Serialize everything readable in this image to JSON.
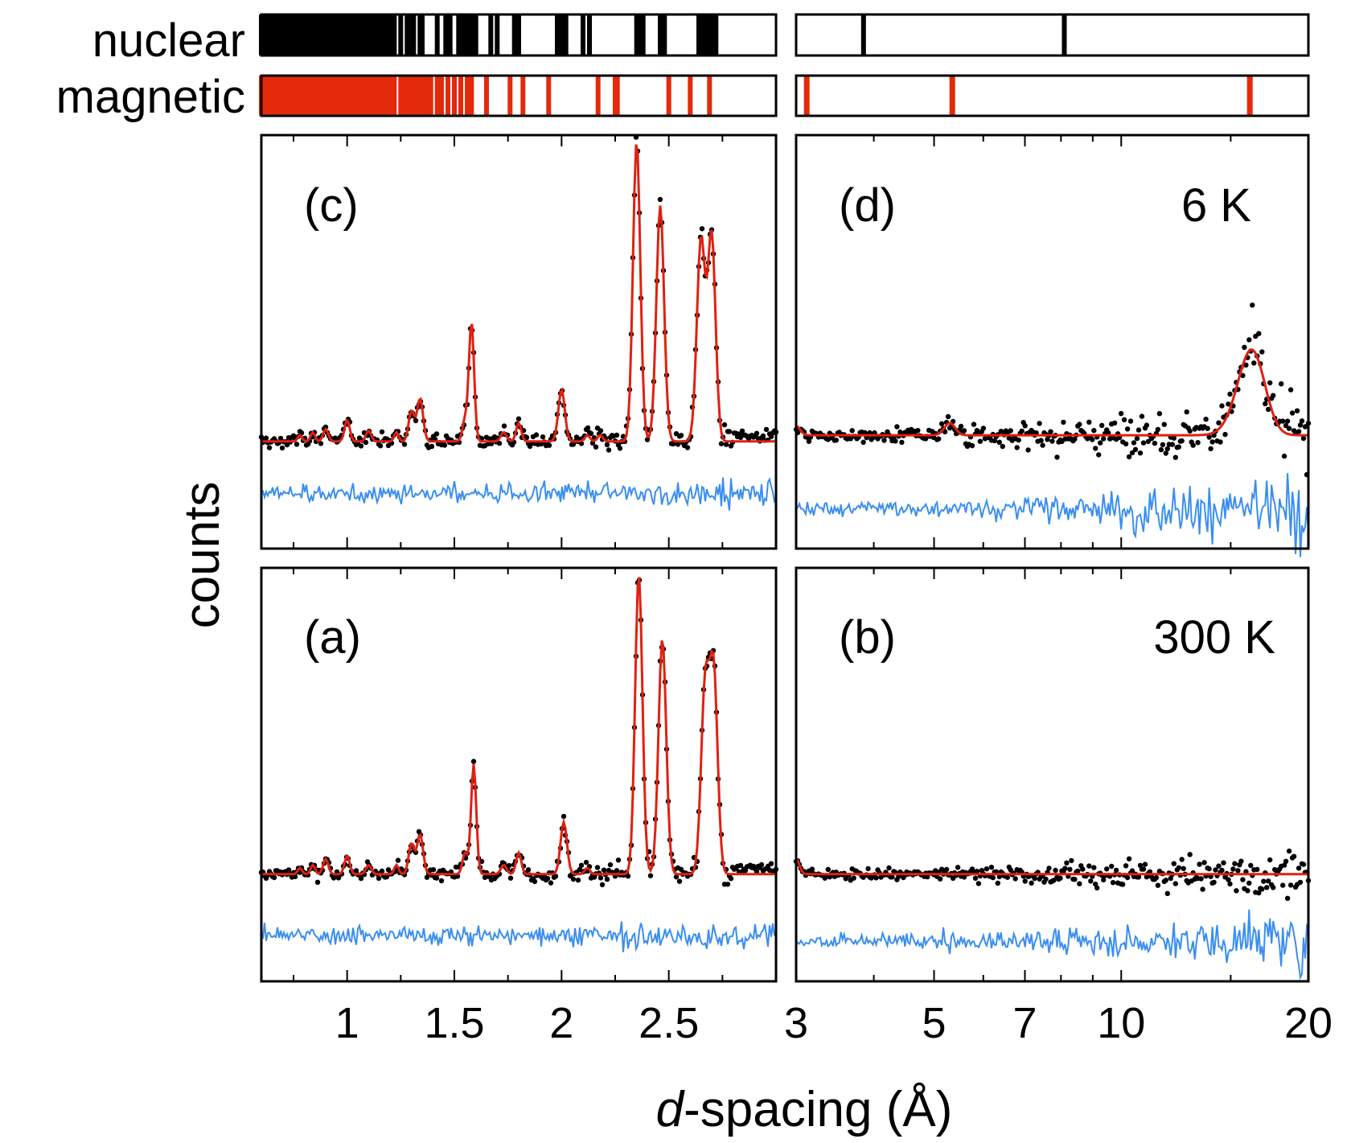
{
  "colors": {
    "data": "#000000",
    "fit": "#e02010",
    "difference": "#3a8ef0",
    "nuclear_tick": "#000000",
    "magnetic_tick": "#e42a0a"
  },
  "row_labels": {
    "nuclear": "nuclear",
    "magnetic": "magnetic"
  },
  "ylabel": "counts",
  "xlabel_italic": "d",
  "xlabel_rest": "-spacing (Å)",
  "chart_data": [
    {
      "type": "scatter",
      "panel": "(c)",
      "temperature": "",
      "x_scale": "linear",
      "xlim": [
        0.6,
        3.0
      ],
      "ylim": [
        -0.35,
        1.0
      ],
      "xticks_major": [
        1.0,
        1.5,
        2.0,
        2.5
      ],
      "xtick_labels": [
        "1",
        "1.5",
        "2",
        "2.5"
      ],
      "xticks_minor": [
        0.75,
        1.25,
        1.75,
        2.25,
        2.75
      ],
      "background": 0.0,
      "noise": 0.018,
      "noise_rise": 0.02,
      "diff_offset": -0.17,
      "diff_noise": 0.022,
      "series": [
        {
          "name": "data",
          "style": "points"
        },
        {
          "name": "fit",
          "style": "line"
        },
        {
          "name": "difference",
          "style": "line"
        }
      ],
      "peaks": [
        {
          "d": 0.78,
          "h": 0.02,
          "w": 0.01
        },
        {
          "d": 0.84,
          "h": 0.03,
          "w": 0.01
        },
        {
          "d": 0.9,
          "h": 0.04,
          "w": 0.012
        },
        {
          "d": 1.0,
          "h": 0.07,
          "w": 0.012
        },
        {
          "d": 1.1,
          "h": 0.035,
          "w": 0.012
        },
        {
          "d": 1.23,
          "h": 0.03,
          "w": 0.01
        },
        {
          "d": 1.3,
          "h": 0.1,
          "w": 0.013
        },
        {
          "d": 1.34,
          "h": 0.14,
          "w": 0.014
        },
        {
          "d": 1.55,
          "h": 0.07,
          "w": 0.012
        },
        {
          "d": 1.58,
          "h": 0.39,
          "w": 0.012
        },
        {
          "d": 1.73,
          "h": 0.03,
          "w": 0.013
        },
        {
          "d": 1.8,
          "h": 0.06,
          "w": 0.012
        },
        {
          "d": 2.0,
          "h": 0.17,
          "w": 0.015
        },
        {
          "d": 2.12,
          "h": 0.02,
          "w": 0.012
        },
        {
          "d": 2.18,
          "h": 0.02,
          "w": 0.012
        },
        {
          "d": 2.35,
          "h": 0.98,
          "w": 0.017
        },
        {
          "d": 2.46,
          "h": 0.77,
          "w": 0.018
        },
        {
          "d": 2.65,
          "h": 0.66,
          "w": 0.019
        },
        {
          "d": 2.7,
          "h": 0.67,
          "w": 0.018
        }
      ],
      "data_end": 2.75
    },
    {
      "type": "scatter",
      "panel": "(d)",
      "temperature": "6 K",
      "x_scale": "log",
      "xlim": [
        3,
        20
      ],
      "ylim": [
        -0.35,
        1.0
      ],
      "xticks_major": [
        3,
        5,
        7,
        10,
        20
      ],
      "xtick_labels": [
        "3",
        "5",
        "7",
        "10",
        "20"
      ],
      "xticks_minor": [
        4,
        6,
        8,
        9,
        15
      ],
      "background": 0.02,
      "noise": 0.015,
      "noise_rise": 0.09,
      "diff_offset": -0.22,
      "diff_noise": 0.02,
      "series": [
        {
          "name": "data",
          "style": "points"
        },
        {
          "name": "fit",
          "style": "line"
        },
        {
          "name": "difference",
          "style": "line"
        }
      ],
      "peaks": [
        {
          "d": 3.0,
          "h": 0.03,
          "w": 0.15
        },
        {
          "d": 5.3,
          "h": 0.04,
          "w": 0.2
        },
        {
          "d": 16.2,
          "h": 0.28,
          "w": 0.5
        }
      ]
    },
    {
      "type": "scatter",
      "panel": "(a)",
      "temperature": "",
      "x_scale": "linear",
      "xlim": [
        0.6,
        3.0
      ],
      "ylim": [
        -0.35,
        1.0
      ],
      "xticks_major": [
        1.0,
        1.5,
        2.0,
        2.5
      ],
      "xtick_labels": [
        "1",
        "1.5",
        "2",
        "2.5"
      ],
      "xticks_minor": [
        0.75,
        1.25,
        1.75,
        2.25,
        2.75
      ],
      "background": 0.0,
      "noise": 0.016,
      "noise_rise": 0.03,
      "diff_offset": -0.2,
      "diff_noise": 0.022,
      "series": [
        {
          "name": "data",
          "style": "points"
        },
        {
          "name": "fit",
          "style": "line"
        },
        {
          "name": "difference",
          "style": "line"
        }
      ],
      "peaks": [
        {
          "d": 0.78,
          "h": 0.02,
          "w": 0.01
        },
        {
          "d": 0.84,
          "h": 0.03,
          "w": 0.01
        },
        {
          "d": 0.9,
          "h": 0.05,
          "w": 0.012
        },
        {
          "d": 1.0,
          "h": 0.06,
          "w": 0.012
        },
        {
          "d": 1.1,
          "h": 0.03,
          "w": 0.012
        },
        {
          "d": 1.23,
          "h": 0.03,
          "w": 0.01
        },
        {
          "d": 1.3,
          "h": 0.1,
          "w": 0.013
        },
        {
          "d": 1.34,
          "h": 0.13,
          "w": 0.014
        },
        {
          "d": 1.55,
          "h": 0.07,
          "w": 0.012
        },
        {
          "d": 1.59,
          "h": 0.36,
          "w": 0.012
        },
        {
          "d": 1.73,
          "h": 0.03,
          "w": 0.013
        },
        {
          "d": 1.8,
          "h": 0.07,
          "w": 0.012
        },
        {
          "d": 2.01,
          "h": 0.17,
          "w": 0.015
        },
        {
          "d": 2.12,
          "h": 0.02,
          "w": 0.012
        },
        {
          "d": 2.36,
          "h": 0.98,
          "w": 0.017
        },
        {
          "d": 2.47,
          "h": 0.77,
          "w": 0.018
        },
        {
          "d": 2.67,
          "h": 0.62,
          "w": 0.019
        },
        {
          "d": 2.71,
          "h": 0.64,
          "w": 0.018
        }
      ],
      "data_end": 2.75
    },
    {
      "type": "scatter",
      "panel": "(b)",
      "temperature": "300 K",
      "x_scale": "log",
      "xlim": [
        3,
        20
      ],
      "ylim": [
        -0.35,
        1.0
      ],
      "xticks_major": [
        3,
        5,
        7,
        10,
        20
      ],
      "xtick_labels": [
        "3",
        "5",
        "7",
        "10",
        "20"
      ],
      "xticks_minor": [
        4,
        6,
        8,
        9,
        15
      ],
      "background": 0.0,
      "noise": 0.012,
      "noise_rise": 0.06,
      "diff_offset": -0.22,
      "diff_noise": 0.02,
      "series": [
        {
          "name": "data",
          "style": "points"
        },
        {
          "name": "fit",
          "style": "line"
        },
        {
          "name": "difference",
          "style": "line"
        }
      ],
      "peaks": [
        {
          "d": 3.0,
          "h": 0.05,
          "w": 0.12
        }
      ]
    }
  ],
  "reflection_ticks": {
    "nuclear_left": [
      0.6,
      0.62,
      0.64,
      0.66,
      0.68,
      0.7,
      0.72,
      0.74,
      0.76,
      0.78,
      0.8,
      0.82,
      0.84,
      0.86,
      0.88,
      0.9,
      0.92,
      0.94,
      0.96,
      0.98,
      1.0,
      1.02,
      1.04,
      1.06,
      1.08,
      1.1,
      1.12,
      1.14,
      1.16,
      1.18,
      1.2,
      1.22,
      1.25,
      1.28,
      1.29,
      1.31,
      1.34,
      1.35,
      1.42,
      1.46,
      1.48,
      1.52,
      1.54,
      1.56,
      1.58,
      1.6,
      1.67,
      1.7,
      1.78,
      1.8,
      1.98,
      2.0,
      2.02,
      2.1,
      2.13,
      2.35,
      2.37,
      2.38,
      2.46,
      2.48,
      2.64,
      2.66,
      2.68,
      2.7,
      2.72
    ],
    "nuclear_right": [
      3.85,
      8.1
    ],
    "magnetic_left": [
      0.6,
      0.62,
      0.64,
      0.66,
      0.68,
      0.7,
      0.72,
      0.74,
      0.76,
      0.78,
      0.8,
      0.82,
      0.84,
      0.86,
      0.88,
      0.9,
      0.92,
      0.94,
      0.96,
      0.98,
      1.0,
      1.02,
      1.04,
      1.06,
      1.08,
      1.1,
      1.12,
      1.14,
      1.16,
      1.18,
      1.2,
      1.22,
      1.25,
      1.27,
      1.29,
      1.31,
      1.33,
      1.35,
      1.37,
      1.39,
      1.42,
      1.44,
      1.47,
      1.5,
      1.53,
      1.56,
      1.58,
      1.65,
      1.76,
      1.82,
      1.94,
      2.17,
      2.25,
      2.26,
      2.5,
      2.6,
      2.69
    ],
    "magnetic_right": [
      3.12,
      5.35,
      16.1
    ]
  }
}
